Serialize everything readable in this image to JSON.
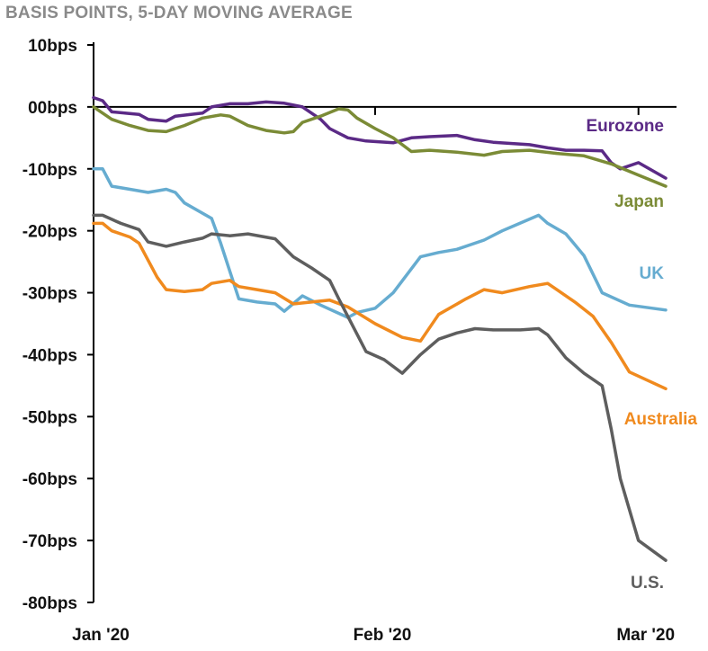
{
  "chart_data": {
    "type": "line",
    "subtitle": "BASIS POINTS, 5-DAY MOVING AVERAGE",
    "y_unit": "bps",
    "ylim": [
      -80,
      10
    ],
    "y_ticks": [
      10,
      0,
      -10,
      -20,
      -30,
      -40,
      -50,
      -60,
      -70,
      -80
    ],
    "y_tick_labels": [
      "10bps",
      "00bps",
      "-10bps",
      "-20bps",
      "-30bps",
      "-40bps",
      "-50bps",
      "-60bps",
      "-70bps",
      "-80bps"
    ],
    "x_ticks": [
      {
        "label": "Jan '20",
        "date": "2020-01-01"
      },
      {
        "label": "Feb '20",
        "date": "2020-02-01"
      },
      {
        "label": "Mar '20",
        "date": "2020-03-01"
      }
    ],
    "x_range": [
      "2020-01-01",
      "2020-03-04"
    ],
    "series": [
      {
        "name": "Eurozone",
        "color": "#5b2a86",
        "points": [
          [
            "2020-01-01",
            1.5
          ],
          [
            "2020-01-02",
            1.0
          ],
          [
            "2020-01-03",
            -0.8
          ],
          [
            "2020-01-06",
            -1.2
          ],
          [
            "2020-01-07",
            -2.0
          ],
          [
            "2020-01-09",
            -2.3
          ],
          [
            "2020-01-10",
            -1.5
          ],
          [
            "2020-01-13",
            -1.0
          ],
          [
            "2020-01-14",
            0.0
          ],
          [
            "2020-01-16",
            0.5
          ],
          [
            "2020-01-18",
            0.5
          ],
          [
            "2020-01-20",
            0.8
          ],
          [
            "2020-01-22",
            0.6
          ],
          [
            "2020-01-24",
            0.0
          ],
          [
            "2020-01-26",
            -2.0
          ],
          [
            "2020-01-27",
            -3.5
          ],
          [
            "2020-01-29",
            -5.0
          ],
          [
            "2020-01-31",
            -5.5
          ],
          [
            "2020-02-03",
            -5.8
          ],
          [
            "2020-02-05",
            -5.0
          ],
          [
            "2020-02-07",
            -4.8
          ],
          [
            "2020-02-10",
            -4.6
          ],
          [
            "2020-02-12",
            -5.3
          ],
          [
            "2020-02-14",
            -5.7
          ],
          [
            "2020-02-18",
            -6.1
          ],
          [
            "2020-02-20",
            -6.6
          ],
          [
            "2020-02-22",
            -7.0
          ],
          [
            "2020-02-24",
            -7.0
          ],
          [
            "2020-02-26",
            -7.1
          ],
          [
            "2020-02-27",
            -9.0
          ],
          [
            "2020-02-28",
            -10.0
          ],
          [
            "2020-03-01",
            -9.0
          ],
          [
            "2020-03-04",
            -11.5
          ]
        ]
      },
      {
        "name": "Japan",
        "color": "#7b8b36",
        "points": [
          [
            "2020-01-01",
            0.0
          ],
          [
            "2020-01-03",
            -2.0
          ],
          [
            "2020-01-05",
            -3.0
          ],
          [
            "2020-01-07",
            -3.8
          ],
          [
            "2020-01-09",
            -4.0
          ],
          [
            "2020-01-11",
            -3.0
          ],
          [
            "2020-01-13",
            -1.8
          ],
          [
            "2020-01-15",
            -1.3
          ],
          [
            "2020-01-16",
            -1.5
          ],
          [
            "2020-01-18",
            -3.0
          ],
          [
            "2020-01-20",
            -3.8
          ],
          [
            "2020-01-22",
            -4.2
          ],
          [
            "2020-01-23",
            -4.0
          ],
          [
            "2020-01-24",
            -2.5
          ],
          [
            "2020-01-26",
            -1.5
          ],
          [
            "2020-01-28",
            -0.3
          ],
          [
            "2020-01-29",
            -0.5
          ],
          [
            "2020-01-30",
            -1.8
          ],
          [
            "2020-02-01",
            -3.5
          ],
          [
            "2020-02-03",
            -5.0
          ],
          [
            "2020-02-05",
            -7.2
          ],
          [
            "2020-02-07",
            -7.0
          ],
          [
            "2020-02-10",
            -7.3
          ],
          [
            "2020-02-13",
            -7.8
          ],
          [
            "2020-02-15",
            -7.2
          ],
          [
            "2020-02-18",
            -7.0
          ],
          [
            "2020-02-21",
            -7.5
          ],
          [
            "2020-02-24",
            -7.9
          ],
          [
            "2020-02-27",
            -9.2
          ],
          [
            "2020-03-01",
            -11.0
          ],
          [
            "2020-03-04",
            -12.8
          ]
        ]
      },
      {
        "name": "UK",
        "color": "#66acd0",
        "points": [
          [
            "2020-01-01",
            -10.0
          ],
          [
            "2020-01-02",
            -10.0
          ],
          [
            "2020-01-03",
            -12.8
          ],
          [
            "2020-01-05",
            -13.3
          ],
          [
            "2020-01-07",
            -13.8
          ],
          [
            "2020-01-09",
            -13.3
          ],
          [
            "2020-01-10",
            -13.8
          ],
          [
            "2020-01-11",
            -15.5
          ],
          [
            "2020-01-14",
            -18.0
          ],
          [
            "2020-01-15",
            -22.0
          ],
          [
            "2020-01-17",
            -31.0
          ],
          [
            "2020-01-19",
            -31.5
          ],
          [
            "2020-01-21",
            -31.8
          ],
          [
            "2020-01-22",
            -33.0
          ],
          [
            "2020-01-24",
            -30.5
          ],
          [
            "2020-01-26",
            -32.0
          ],
          [
            "2020-01-29",
            -34.0
          ],
          [
            "2020-01-30",
            -33.2
          ],
          [
            "2020-02-01",
            -32.5
          ],
          [
            "2020-02-03",
            -30.0
          ],
          [
            "2020-02-06",
            -24.2
          ],
          [
            "2020-02-08",
            -23.5
          ],
          [
            "2020-02-10",
            -23.0
          ],
          [
            "2020-02-13",
            -21.5
          ],
          [
            "2020-02-15",
            -20.0
          ],
          [
            "2020-02-19",
            -17.5
          ],
          [
            "2020-02-20",
            -18.8
          ],
          [
            "2020-02-22",
            -20.5
          ],
          [
            "2020-02-24",
            -24.0
          ],
          [
            "2020-02-26",
            -30.0
          ],
          [
            "2020-02-29",
            -32.0
          ],
          [
            "2020-03-04",
            -32.8
          ]
        ]
      },
      {
        "name": "Australia",
        "color": "#f08a1e",
        "points": [
          [
            "2020-01-01",
            -18.8
          ],
          [
            "2020-01-02",
            -18.8
          ],
          [
            "2020-01-03",
            -20.0
          ],
          [
            "2020-01-05",
            -21.0
          ],
          [
            "2020-01-06",
            -22.0
          ],
          [
            "2020-01-08",
            -27.5
          ],
          [
            "2020-01-09",
            -29.5
          ],
          [
            "2020-01-11",
            -29.8
          ],
          [
            "2020-01-13",
            -29.5
          ],
          [
            "2020-01-14",
            -28.5
          ],
          [
            "2020-01-16",
            -28.0
          ],
          [
            "2020-01-17",
            -29.0
          ],
          [
            "2020-01-19",
            -29.5
          ],
          [
            "2020-01-21",
            -30.0
          ],
          [
            "2020-01-23",
            -31.8
          ],
          [
            "2020-01-25",
            -31.5
          ],
          [
            "2020-01-27",
            -31.2
          ],
          [
            "2020-01-29",
            -32.3
          ],
          [
            "2020-02-01",
            -35.0
          ],
          [
            "2020-02-04",
            -37.2
          ],
          [
            "2020-02-06",
            -37.8
          ],
          [
            "2020-02-08",
            -33.5
          ],
          [
            "2020-02-11",
            -31.0
          ],
          [
            "2020-02-13",
            -29.5
          ],
          [
            "2020-02-15",
            -30.0
          ],
          [
            "2020-02-18",
            -29.0
          ],
          [
            "2020-02-20",
            -28.5
          ],
          [
            "2020-02-21",
            -29.5
          ],
          [
            "2020-02-23",
            -31.5
          ],
          [
            "2020-02-25",
            -33.8
          ],
          [
            "2020-02-27",
            -38.0
          ],
          [
            "2020-02-29",
            -42.8
          ],
          [
            "2020-03-04",
            -45.5
          ]
        ]
      },
      {
        "name": "U.S.",
        "color": "#5e5e5e",
        "points": [
          [
            "2020-01-01",
            -17.5
          ],
          [
            "2020-01-02",
            -17.5
          ],
          [
            "2020-01-04",
            -18.8
          ],
          [
            "2020-01-06",
            -19.8
          ],
          [
            "2020-01-07",
            -21.8
          ],
          [
            "2020-01-09",
            -22.5
          ],
          [
            "2020-01-11",
            -21.8
          ],
          [
            "2020-01-13",
            -21.2
          ],
          [
            "2020-01-14",
            -20.5
          ],
          [
            "2020-01-16",
            -20.8
          ],
          [
            "2020-01-18",
            -20.5
          ],
          [
            "2020-01-21",
            -21.3
          ],
          [
            "2020-01-23",
            -24.2
          ],
          [
            "2020-01-25",
            -26.0
          ],
          [
            "2020-01-27",
            -28.0
          ],
          [
            "2020-01-28",
            -31.0
          ],
          [
            "2020-01-31",
            -39.5
          ],
          [
            "2020-02-02",
            -40.8
          ],
          [
            "2020-02-04",
            -43.0
          ],
          [
            "2020-02-06",
            -40.0
          ],
          [
            "2020-02-08",
            -37.5
          ],
          [
            "2020-02-10",
            -36.5
          ],
          [
            "2020-02-12",
            -35.8
          ],
          [
            "2020-02-14",
            -36.0
          ],
          [
            "2020-02-17",
            -36.0
          ],
          [
            "2020-02-19",
            -35.8
          ],
          [
            "2020-02-20",
            -36.8
          ],
          [
            "2020-02-22",
            -40.5
          ],
          [
            "2020-02-24",
            -43.0
          ],
          [
            "2020-02-26",
            -45.0
          ],
          [
            "2020-02-27",
            -52.0
          ],
          [
            "2020-02-28",
            -60.0
          ],
          [
            "2020-03-01",
            -70.0
          ],
          [
            "2020-03-04",
            -73.2
          ]
        ]
      }
    ]
  }
}
